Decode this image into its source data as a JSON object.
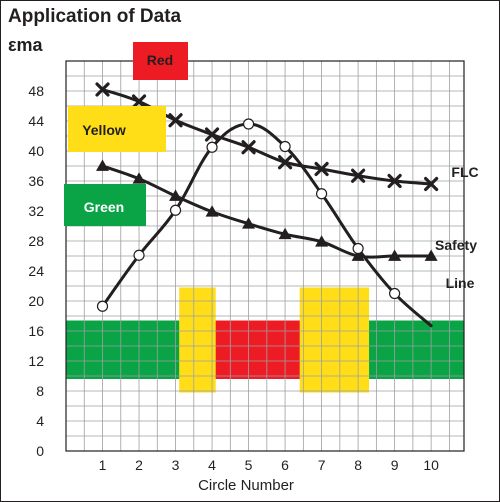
{
  "chart_data": {
    "type": "line",
    "title": "Application of Data",
    "ylabel": "εma",
    "xlabel": "Circle Number",
    "xlim": [
      0,
      10.9
    ],
    "ylim": [
      0,
      52
    ],
    "x_ticks": [
      1,
      2,
      3,
      4,
      5,
      6,
      7,
      8,
      9,
      10
    ],
    "y_ticks": [
      0,
      4,
      8,
      12,
      16,
      20,
      24,
      28,
      32,
      36,
      40,
      44,
      48
    ],
    "grid": true,
    "series": [
      {
        "name": "FLC",
        "marker": "x",
        "x": [
          1,
          2,
          3,
          4,
          5,
          6,
          7,
          8,
          9,
          10
        ],
        "y": [
          48.2,
          46.6,
          44.1,
          42.2,
          40.5,
          38.5,
          37.6,
          36.7,
          36.0,
          35.6
        ]
      },
      {
        "name": "Safety Line",
        "marker": "triangle",
        "x": [
          1,
          2,
          3,
          4,
          5,
          6,
          7,
          8,
          9,
          10
        ],
        "y": [
          38.0,
          36.3,
          34.0,
          31.9,
          30.3,
          28.9,
          27.9,
          26.0,
          26.0,
          26.0
        ]
      },
      {
        "name": "",
        "marker": "circle",
        "x": [
          1,
          2,
          3,
          4,
          5,
          6,
          7,
          8,
          9,
          10
        ],
        "y": [
          19.3,
          26.1,
          32.1,
          40.5,
          43.6,
          40.6,
          34.3,
          27.0,
          21.0,
          16.7
        ],
        "open_markers_at": [
          1,
          2,
          3,
          4,
          5,
          6,
          7,
          8,
          9
        ]
      }
    ],
    "labels": {
      "flc": "FLC",
      "safety": "Safety",
      "line": "Line"
    },
    "zones": [
      {
        "name": "green-zone",
        "x_range": [
          -0.1,
          10.9
        ],
        "y_range": [
          9.6,
          17.4
        ],
        "color": "#0aa345"
      },
      {
        "name": "red-zone",
        "x_range": [
          3.9,
          6.5
        ],
        "y_range": [
          9.6,
          17.4
        ],
        "color": "#ed1c24"
      },
      {
        "name": "yellow-zone-left",
        "x_range": [
          3.1,
          4.1
        ],
        "y_range": [
          7.8,
          21.8
        ],
        "color": "#ffde17"
      },
      {
        "name": "yellow-zone-right",
        "x_range": [
          6.4,
          8.3
        ],
        "y_range": [
          7.8,
          21.8
        ],
        "color": "#ffde17"
      }
    ],
    "legend": [
      {
        "label": "Red",
        "color": "#ed1c24"
      },
      {
        "label": "Yellow",
        "color": "#ffde17"
      },
      {
        "label": "Green",
        "color": "#0aa345"
      }
    ]
  }
}
